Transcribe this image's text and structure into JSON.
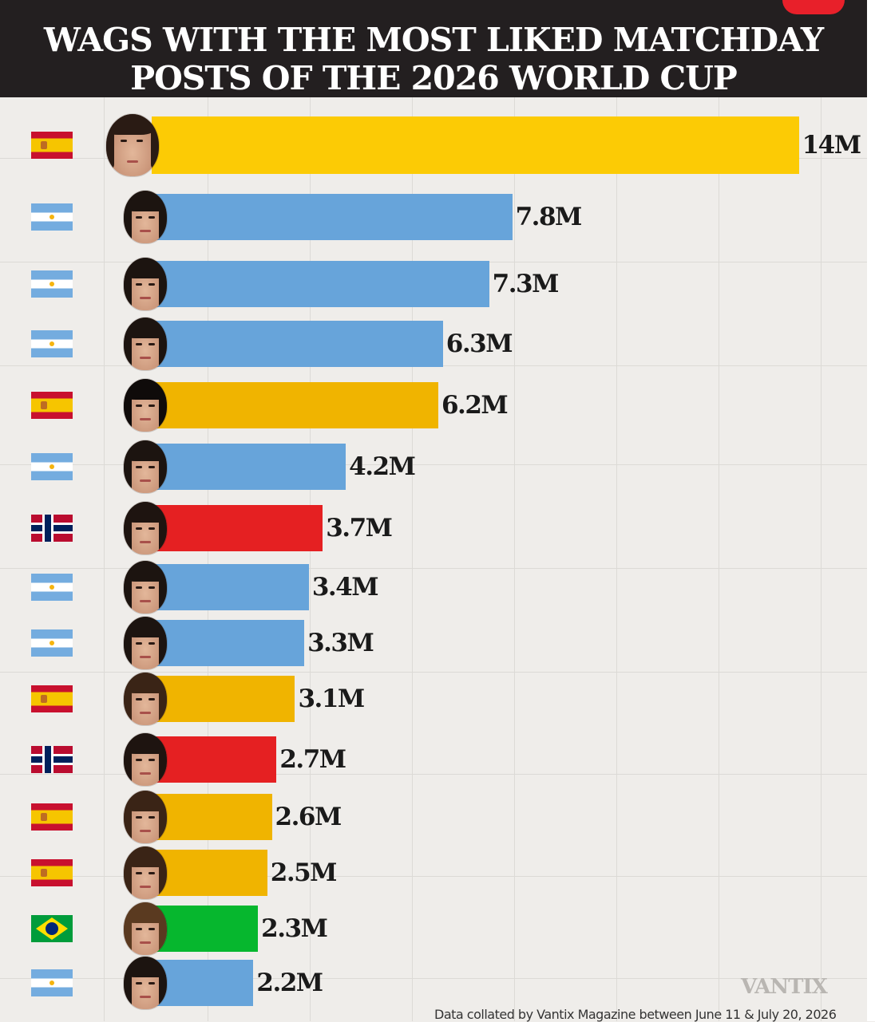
{
  "header": {
    "title": "WAGS WITH THE MOST LIKED MATCHDAY\nPOSTS OF THE 2026 WORLD CUP"
  },
  "colors": {
    "spain": "#f0b400",
    "spain_top": "#fccb05",
    "argentina": "#67a4da",
    "norway": "#e52022",
    "brazil": "#06b72e"
  },
  "chart_data": {
    "type": "bar",
    "orientation": "horizontal",
    "unit": "M",
    "categories": [
      "Spain",
      "Argentina",
      "Argentina",
      "Argentina",
      "Spain",
      "Argentina",
      "Norway",
      "Argentina",
      "Argentina",
      "Spain",
      "Norway",
      "Spain",
      "Spain",
      "Brazil",
      "Argentina"
    ],
    "values": [
      14,
      7.8,
      7.3,
      6.3,
      6.2,
      4.2,
      3.7,
      3.4,
      3.3,
      3.1,
      2.7,
      2.6,
      2.5,
      2.3,
      2.2
    ],
    "value_labels": [
      "14M",
      "7.8M",
      "7.3M",
      "6.3M",
      "6.2M",
      "4.2M",
      "3.7M",
      "3.4M",
      "3.3M",
      "3.1M",
      "2.7M",
      "2.6M",
      "2.5M",
      "2.3M",
      "2.2M"
    ],
    "flag_icons": [
      "spain-flag-icon",
      "argentina-flag-icon",
      "argentina-flag-icon",
      "argentina-flag-icon",
      "spain-flag-icon",
      "argentina-flag-icon",
      "norway-flag-icon",
      "argentina-flag-icon",
      "argentina-flag-icon",
      "spain-flag-icon",
      "norway-flag-icon",
      "spain-flag-icon",
      "spain-flag-icon",
      "brazil-flag-icon",
      "argentina-flag-icon"
    ],
    "bar_colors": [
      "#fccb05",
      "#67a4da",
      "#67a4da",
      "#67a4da",
      "#f0b400",
      "#67a4da",
      "#e52022",
      "#67a4da",
      "#67a4da",
      "#f0b400",
      "#e52022",
      "#f0b400",
      "#f0b400",
      "#06b72e",
      "#67a4da"
    ],
    "grid": true,
    "legend": "none"
  },
  "watermark": "VANTIX",
  "footer": {
    "note": "Data collated by Vantix Magazine between June 11 & July 20, 2026"
  }
}
